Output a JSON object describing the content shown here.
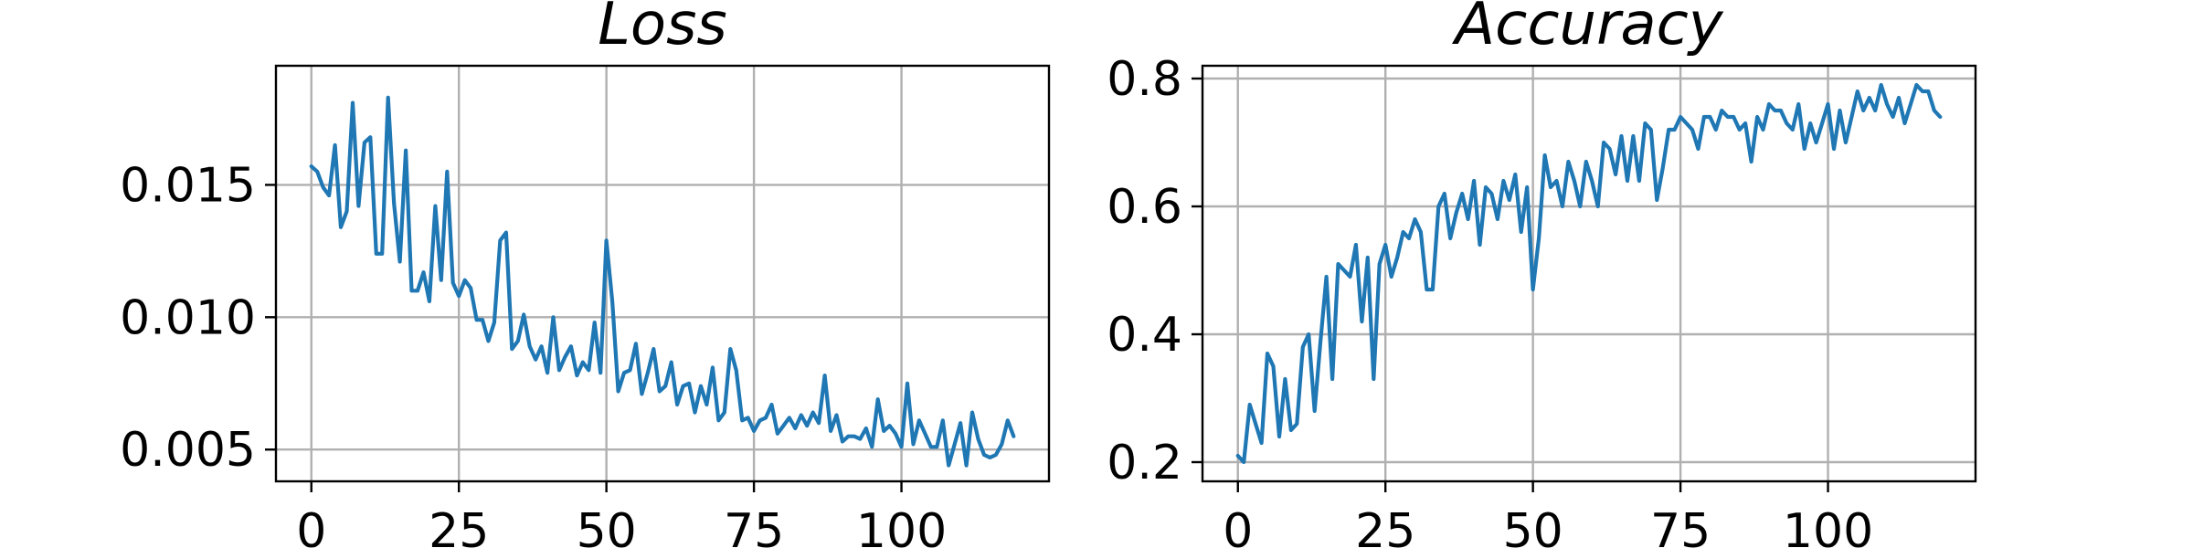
{
  "chart_data": [
    {
      "type": "line",
      "title": "Loss",
      "xlabel": "",
      "ylabel": "",
      "xlim": [
        -6,
        125
      ],
      "ylim": [
        0.0038,
        0.0195
      ],
      "xticks": [
        0,
        25,
        50,
        75,
        100
      ],
      "xtick_labels": [
        "0",
        "25",
        "50",
        "75",
        "100"
      ],
      "yticks": [
        0.005,
        0.01,
        0.015
      ],
      "ytick_labels": [
        "0.005",
        "0.010",
        "0.015"
      ],
      "grid": true,
      "color": "#1f77b4",
      "series": [
        {
          "x": [
            0,
            1,
            2,
            3,
            4,
            5,
            6,
            7,
            8,
            9,
            10,
            11,
            12,
            13,
            14,
            15,
            16,
            17,
            18,
            19,
            20,
            21,
            22,
            23,
            24,
            25,
            26,
            27,
            28,
            29,
            30,
            31,
            32,
            33,
            34,
            35,
            36,
            37,
            38,
            39,
            40,
            41,
            42,
            43,
            44,
            45,
            46,
            47,
            48,
            49,
            50,
            51,
            52,
            53,
            54,
            55,
            56,
            57,
            58,
            59,
            60,
            61,
            62,
            63,
            64,
            65,
            66,
            67,
            68,
            69,
            70,
            71,
            72,
            73,
            74,
            75,
            76,
            77,
            78,
            79,
            80,
            81,
            82,
            83,
            84,
            85,
            86,
            87,
            88,
            89,
            90,
            91,
            92,
            93,
            94,
            95,
            96,
            97,
            98,
            99,
            100,
            101,
            102,
            103,
            104,
            105,
            106,
            107,
            108,
            109,
            110,
            111,
            112,
            113,
            114,
            115,
            116,
            117,
            118,
            119
          ],
          "values": [
            0.0157,
            0.0155,
            0.0149,
            0.0146,
            0.0165,
            0.0134,
            0.014,
            0.0181,
            0.0142,
            0.0166,
            0.0168,
            0.0124,
            0.0124,
            0.0183,
            0.0143,
            0.0121,
            0.0163,
            0.011,
            0.011,
            0.0117,
            0.0106,
            0.0142,
            0.0114,
            0.0155,
            0.0113,
            0.0108,
            0.0114,
            0.0111,
            0.0099,
            0.0099,
            0.0091,
            0.0098,
            0.0129,
            0.0132,
            0.0088,
            0.0091,
            0.0101,
            0.0089,
            0.0084,
            0.0089,
            0.0079,
            0.01,
            0.008,
            0.0085,
            0.0089,
            0.0078,
            0.0083,
            0.008,
            0.0098,
            0.0079,
            0.0129,
            0.0106,
            0.0072,
            0.0079,
            0.008,
            0.009,
            0.0071,
            0.0079,
            0.0088,
            0.0072,
            0.0074,
            0.0083,
            0.0067,
            0.0074,
            0.0075,
            0.0064,
            0.0074,
            0.0067,
            0.0081,
            0.0061,
            0.0064,
            0.0088,
            0.008,
            0.0061,
            0.0062,
            0.0057,
            0.0061,
            0.0062,
            0.0067,
            0.0056,
            0.0059,
            0.0062,
            0.0058,
            0.0063,
            0.0059,
            0.0064,
            0.006,
            0.0078,
            0.0057,
            0.0063,
            0.0053,
            0.0055,
            0.0055,
            0.0054,
            0.0058,
            0.0051,
            0.0069,
            0.0057,
            0.0059,
            0.0056,
            0.0051,
            0.0075,
            0.0052,
            0.0061,
            0.0056,
            0.0051,
            0.0051,
            0.0061,
            0.0044,
            0.0052,
            0.006,
            0.0044,
            0.0064,
            0.0054,
            0.0048,
            0.0047,
            0.0048,
            0.0052,
            0.0061,
            0.0055
          ]
        }
      ]
    },
    {
      "type": "line",
      "title": "Accuracy",
      "xlabel": "",
      "ylabel": "",
      "xlim": [
        -6,
        125
      ],
      "ylim": [
        0.17,
        0.82
      ],
      "xticks": [
        0,
        25,
        50,
        75,
        100
      ],
      "xtick_labels": [
        "0",
        "25",
        "50",
        "75",
        "100"
      ],
      "yticks": [
        0.2,
        0.4,
        0.6,
        0.8
      ],
      "ytick_labels": [
        "0.2",
        "0.4",
        "0.6",
        "0.8"
      ],
      "grid": true,
      "color": "#1f77b4",
      "series": [
        {
          "x": [
            0,
            1,
            2,
            3,
            4,
            5,
            6,
            7,
            8,
            9,
            10,
            11,
            12,
            13,
            14,
            15,
            16,
            17,
            18,
            19,
            20,
            21,
            22,
            23,
            24,
            25,
            26,
            27,
            28,
            29,
            30,
            31,
            32,
            33,
            34,
            35,
            36,
            37,
            38,
            39,
            40,
            41,
            42,
            43,
            44,
            45,
            46,
            47,
            48,
            49,
            50,
            51,
            52,
            53,
            54,
            55,
            56,
            57,
            58,
            59,
            60,
            61,
            62,
            63,
            64,
            65,
            66,
            67,
            68,
            69,
            70,
            71,
            72,
            73,
            74,
            75,
            76,
            77,
            78,
            79,
            80,
            81,
            82,
            83,
            84,
            85,
            86,
            87,
            88,
            89,
            90,
            91,
            92,
            93,
            94,
            95,
            96,
            97,
            98,
            99,
            100,
            101,
            102,
            103,
            104,
            105,
            106,
            107,
            108,
            109,
            110,
            111,
            112,
            113,
            114,
            115,
            116,
            117,
            118,
            119
          ],
          "values": [
            0.21,
            0.2,
            0.29,
            0.26,
            0.23,
            0.37,
            0.35,
            0.24,
            0.33,
            0.25,
            0.26,
            0.38,
            0.4,
            0.28,
            0.39,
            0.49,
            0.33,
            0.51,
            0.5,
            0.49,
            0.54,
            0.42,
            0.52,
            0.33,
            0.51,
            0.54,
            0.49,
            0.52,
            0.56,
            0.55,
            0.58,
            0.56,
            0.47,
            0.47,
            0.6,
            0.62,
            0.55,
            0.59,
            0.62,
            0.58,
            0.64,
            0.54,
            0.63,
            0.62,
            0.58,
            0.64,
            0.61,
            0.65,
            0.56,
            0.63,
            0.47,
            0.55,
            0.68,
            0.63,
            0.64,
            0.6,
            0.67,
            0.64,
            0.6,
            0.67,
            0.64,
            0.6,
            0.7,
            0.69,
            0.65,
            0.71,
            0.64,
            0.71,
            0.64,
            0.73,
            0.72,
            0.61,
            0.66,
            0.72,
            0.72,
            0.74,
            0.73,
            0.72,
            0.69,
            0.74,
            0.74,
            0.72,
            0.75,
            0.74,
            0.74,
            0.72,
            0.73,
            0.67,
            0.74,
            0.72,
            0.76,
            0.75,
            0.75,
            0.73,
            0.72,
            0.76,
            0.69,
            0.73,
            0.7,
            0.73,
            0.76,
            0.69,
            0.75,
            0.7,
            0.74,
            0.78,
            0.75,
            0.77,
            0.75,
            0.79,
            0.76,
            0.74,
            0.77,
            0.73,
            0.76,
            0.79,
            0.78,
            0.78,
            0.75,
            0.74
          ]
        }
      ]
    }
  ]
}
